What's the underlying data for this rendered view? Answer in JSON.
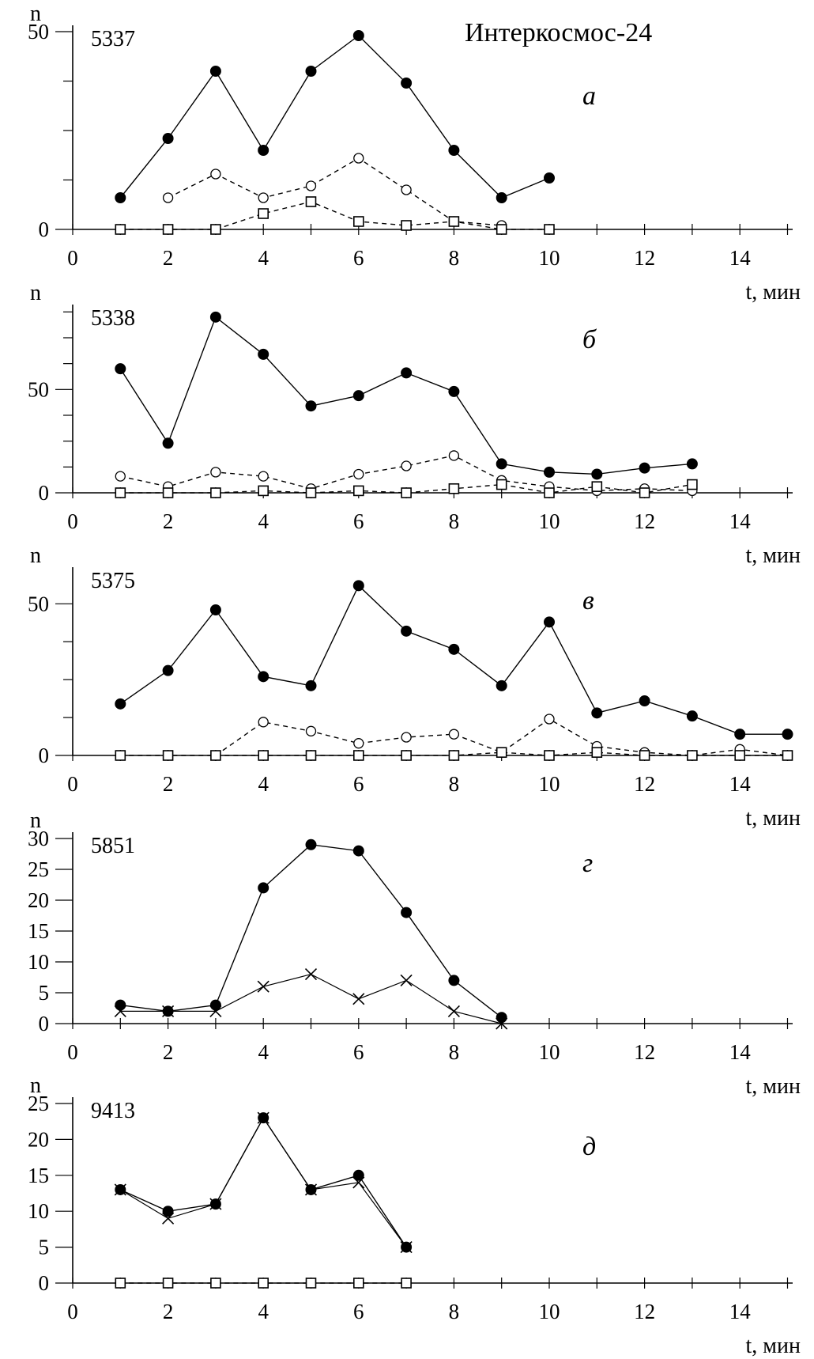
{
  "figure_title": "Интеркосмос-24",
  "chart_data": [
    {
      "type": "line",
      "panel_id": "5337",
      "panel_letter": "а",
      "ylabel": "n",
      "xlabel": "t, мин",
      "xlim": [
        0,
        15
      ],
      "ylim": [
        0,
        50
      ],
      "x_ticks": [
        0,
        2,
        4,
        6,
        8,
        10,
        12,
        14
      ],
      "y_ticks": [
        0,
        50
      ],
      "series": [
        {
          "marker": "filled-circle",
          "line": "solid",
          "x": [
            1,
            2,
            3,
            4,
            5,
            6,
            7,
            8,
            9,
            10
          ],
          "values": [
            8,
            23,
            40,
            20,
            40,
            49,
            37,
            20,
            8,
            13
          ]
        },
        {
          "marker": "open-circle",
          "line": "dashed",
          "x": [
            2,
            3,
            4,
            5,
            6,
            7,
            8,
            9
          ],
          "values": [
            8,
            14,
            8,
            11,
            18,
            10,
            2,
            1
          ]
        },
        {
          "marker": "open-square",
          "line": "dashed",
          "x": [
            1,
            2,
            3,
            4,
            5,
            6,
            7,
            8,
            9,
            10
          ],
          "values": [
            0,
            0,
            0,
            4,
            7,
            2,
            1,
            2,
            0,
            0
          ]
        }
      ]
    },
    {
      "type": "line",
      "panel_id": "5338",
      "panel_letter": "б",
      "ylabel": "n",
      "xlabel": "t, мин",
      "xlim": [
        0,
        15
      ],
      "ylim": [
        0,
        88
      ],
      "x_ticks": [
        0,
        2,
        4,
        6,
        8,
        10,
        12,
        14
      ],
      "y_ticks": [
        0,
        50
      ],
      "series": [
        {
          "marker": "filled-circle",
          "line": "solid",
          "x": [
            1,
            2,
            3,
            4,
            5,
            6,
            7,
            8,
            9,
            10,
            11,
            12,
            13
          ],
          "values": [
            60,
            24,
            85,
            67,
            42,
            47,
            58,
            49,
            14,
            10,
            9,
            12,
            14
          ]
        },
        {
          "marker": "open-circle",
          "line": "dashed",
          "x": [
            1,
            2,
            3,
            4,
            5,
            6,
            7,
            8,
            9,
            10,
            11,
            12,
            13
          ],
          "values": [
            8,
            3,
            10,
            8,
            2,
            9,
            13,
            18,
            6,
            3,
            1,
            2,
            1
          ]
        },
        {
          "marker": "open-square",
          "line": "dashed",
          "x": [
            1,
            2,
            3,
            4,
            5,
            6,
            7,
            8,
            9,
            10,
            11,
            12,
            13
          ],
          "values": [
            0,
            0,
            0,
            1,
            0,
            1,
            0,
            2,
            4,
            0,
            3,
            0,
            4
          ]
        }
      ]
    },
    {
      "type": "line",
      "panel_id": "5375",
      "panel_letter": "в",
      "ylabel": "n",
      "xlabel": "t, мин",
      "xlim": [
        0,
        15
      ],
      "ylim": [
        0,
        60
      ],
      "x_ticks": [
        0,
        2,
        4,
        6,
        8,
        10,
        12,
        14
      ],
      "y_ticks": [
        0,
        50
      ],
      "series": [
        {
          "marker": "filled-circle",
          "line": "solid",
          "x": [
            1,
            2,
            3,
            4,
            5,
            6,
            7,
            8,
            9,
            10,
            11,
            12,
            13,
            14,
            15
          ],
          "values": [
            17,
            28,
            48,
            26,
            23,
            56,
            41,
            35,
            23,
            44,
            14,
            18,
            13,
            7,
            7
          ]
        },
        {
          "marker": "open-circle",
          "line": "dashed",
          "x": [
            3,
            4,
            5,
            6,
            7,
            8,
            9,
            10,
            11,
            12,
            13,
            14,
            15
          ],
          "values": [
            0,
            11,
            8,
            4,
            6,
            7,
            1,
            12,
            3,
            1,
            0,
            2,
            0
          ]
        },
        {
          "marker": "open-square",
          "line": "dashed",
          "x": [
            1,
            2,
            3,
            4,
            5,
            6,
            7,
            8,
            9,
            10,
            11,
            12,
            13,
            14,
            15
          ],
          "values": [
            0,
            0,
            0,
            0,
            0,
            0,
            0,
            0,
            1,
            0,
            1,
            0,
            0,
            0,
            0
          ]
        }
      ]
    },
    {
      "type": "line",
      "panel_id": "5851",
      "panel_letter": "г",
      "ylabel": "n",
      "xlabel": "t, мин",
      "xlim": [
        0,
        15
      ],
      "ylim": [
        0,
        30
      ],
      "x_ticks": [
        0,
        2,
        4,
        6,
        8,
        10,
        12,
        14
      ],
      "y_ticks": [
        0,
        5,
        10,
        15,
        20,
        25,
        30
      ],
      "series": [
        {
          "marker": "filled-circle",
          "line": "solid",
          "x": [
            1,
            2,
            3,
            4,
            5,
            6,
            7,
            8,
            9
          ],
          "values": [
            3,
            2,
            3,
            22,
            29,
            28,
            18,
            7,
            1
          ]
        },
        {
          "marker": "cross",
          "line": "solid",
          "x": [
            1,
            2,
            3,
            4,
            5,
            6,
            7,
            8,
            9
          ],
          "values": [
            2,
            2,
            2,
            6,
            8,
            4,
            7,
            2,
            0
          ]
        }
      ]
    },
    {
      "type": "line",
      "panel_id": "9413",
      "panel_letter": "д",
      "ylabel": "n",
      "xlabel": "t, мин",
      "xlim": [
        0,
        15
      ],
      "ylim": [
        0,
        25
      ],
      "x_ticks": [
        0,
        2,
        4,
        6,
        8,
        10,
        12,
        14
      ],
      "y_ticks": [
        0,
        5,
        10,
        15,
        20,
        25
      ],
      "series": [
        {
          "marker": "filled-circle",
          "line": "solid",
          "x": [
            1,
            2,
            3,
            4,
            5,
            6,
            7
          ],
          "values": [
            13,
            10,
            11,
            23,
            13,
            15,
            5
          ]
        },
        {
          "marker": "cross",
          "line": "solid",
          "x": [
            1,
            2,
            3,
            4,
            5,
            6,
            7
          ],
          "values": [
            13,
            9,
            11,
            23,
            13,
            14,
            5
          ]
        },
        {
          "marker": "open-square",
          "line": "dashed",
          "x": [
            1,
            2,
            3,
            4,
            5,
            6,
            7
          ],
          "values": [
            0,
            0,
            0,
            0,
            0,
            0,
            0
          ]
        }
      ]
    }
  ]
}
